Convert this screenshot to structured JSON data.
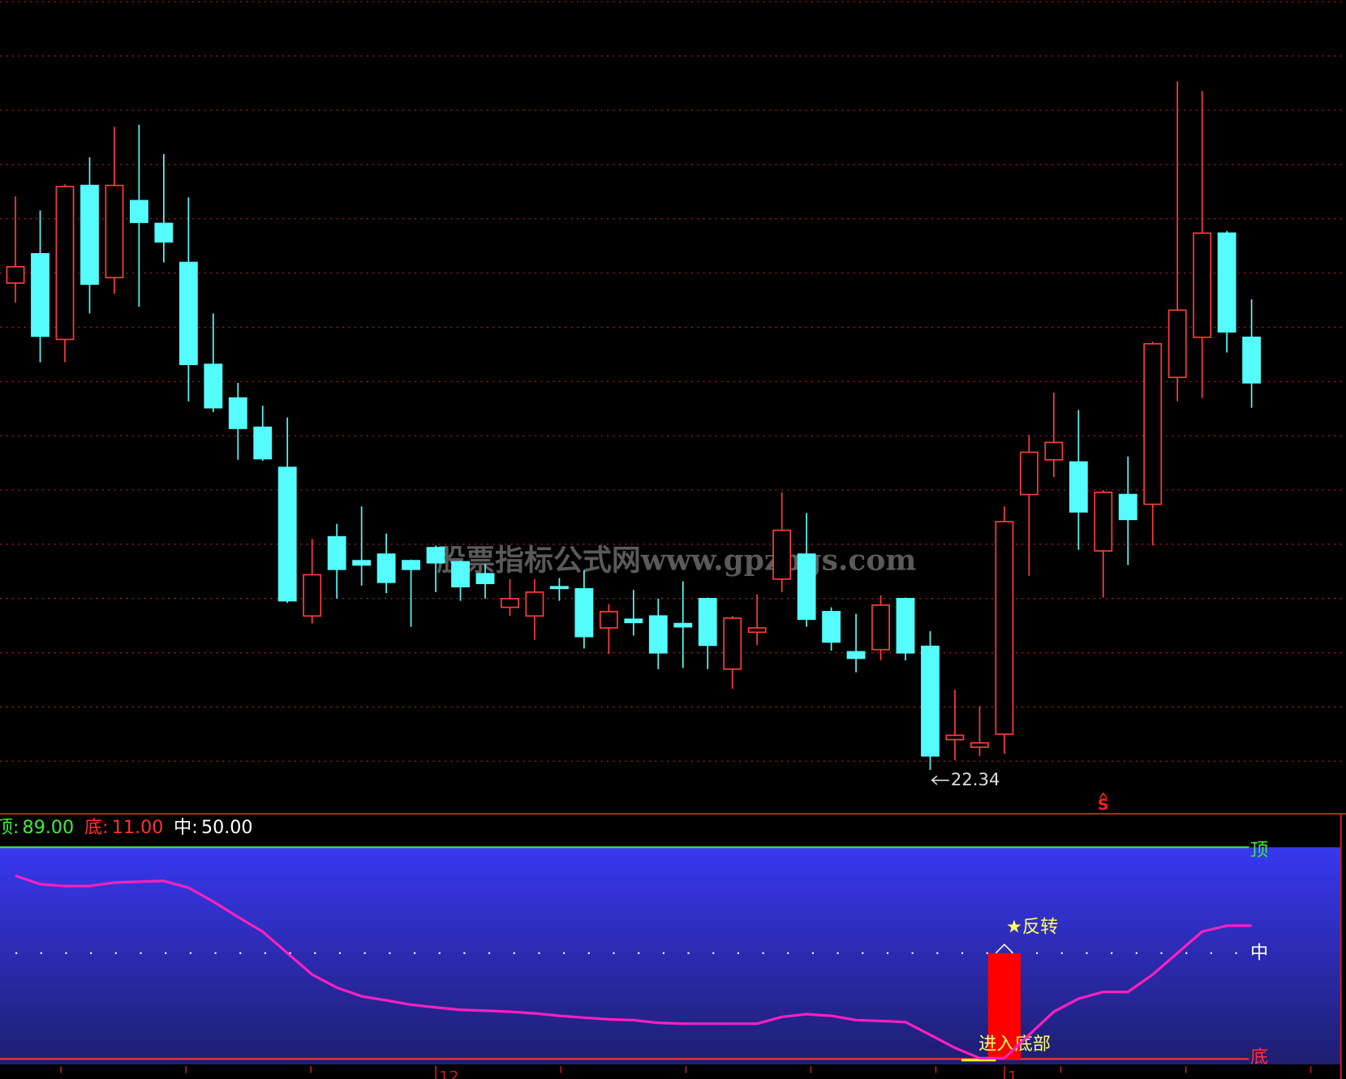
{
  "watermark": "股票指标公式网www.gpzbgs.com",
  "chart_data": [
    {
      "type": "candlestick",
      "ylim": [
        21.96,
        29.44
      ],
      "up_color": "#ff3c3c",
      "down_color": "#54fcfc",
      "grid": true,
      "open": [
        26.83,
        27.1,
        26.31,
        27.73,
        26.88,
        27.59,
        27.38,
        27.02,
        26.08,
        25.77,
        25.5,
        25.13,
        23.76,
        24.49,
        24.27,
        24.33,
        24.27,
        24.39,
        24.26,
        24.15,
        23.84,
        23.76,
        24.03,
        24.01,
        23.65,
        23.73,
        23.76,
        23.69,
        23.92,
        23.27,
        23.61,
        24.1,
        24.33,
        23.8,
        23.43,
        23.45,
        23.92,
        23.48,
        22.62,
        22.55,
        22.67,
        24.88,
        25.2,
        25.18,
        24.36,
        24.88,
        24.79,
        25.96,
        26.33,
        27.29,
        26.33
      ],
      "high": [
        27.63,
        27.5,
        27.74,
        27.99,
        28.27,
        28.29,
        28.02,
        27.62,
        26.55,
        25.91,
        25.7,
        25.59,
        24.47,
        24.61,
        24.77,
        24.52,
        24.28,
        24.41,
        24.27,
        24.24,
        24.1,
        24.1,
        24.11,
        24.18,
        23.87,
        24.0,
        23.92,
        24.08,
        23.93,
        23.76,
        23.96,
        24.9,
        24.71,
        23.84,
        23.78,
        23.95,
        23.93,
        23.62,
        23.08,
        22.93,
        24.77,
        25.43,
        25.82,
        25.66,
        24.92,
        25.23,
        26.29,
        28.69,
        28.6,
        27.31,
        26.68
      ],
      "low": [
        26.65,
        26.1,
        26.1,
        26.55,
        26.73,
        26.61,
        27.02,
        25.74,
        25.64,
        25.2,
        25.19,
        23.88,
        23.69,
        23.92,
        24.04,
        23.97,
        23.66,
        23.98,
        23.9,
        23.92,
        23.76,
        23.54,
        23.9,
        23.46,
        23.41,
        23.58,
        23.27,
        23.28,
        23.27,
        23.09,
        23.49,
        23.98,
        23.66,
        23.44,
        23.24,
        23.35,
        23.35,
        22.34,
        22.43,
        22.47,
        22.49,
        24.13,
        25.04,
        24.37,
        23.93,
        24.23,
        24.41,
        25.74,
        25.77,
        26.19,
        25.68
      ],
      "close": [
        26.98,
        26.34,
        27.72,
        26.82,
        27.73,
        27.39,
        27.21,
        26.08,
        25.68,
        25.49,
        25.21,
        23.9,
        24.14,
        24.19,
        24.23,
        24.07,
        24.19,
        24.25,
        24.03,
        24.06,
        23.92,
        23.98,
        24.02,
        23.57,
        23.8,
        23.7,
        23.42,
        23.66,
        23.49,
        23.74,
        23.65,
        24.55,
        23.73,
        23.52,
        23.37,
        23.86,
        23.42,
        22.47,
        22.66,
        22.59,
        24.63,
        25.27,
        25.36,
        24.72,
        24.9,
        24.65,
        26.27,
        26.58,
        27.29,
        26.38,
        25.91
      ],
      "markers": [
        {
          "text": "S",
          "at": 44,
          "color": "#ff2020"
        }
      ]
    },
    {
      "type": "indicator",
      "ylim": [
        9,
        89
      ],
      "categories": [
        null,
        null,
        null,
        null,
        null,
        null,
        null,
        null,
        null,
        null,
        null,
        null,
        null,
        null,
        null,
        null,
        null,
        "12",
        null,
        null,
        null,
        null,
        null,
        null,
        null,
        null,
        null,
        null,
        null,
        null,
        null,
        null,
        null,
        null,
        null,
        null,
        null,
        null,
        null,
        null,
        "1",
        null,
        null,
        null,
        null,
        null,
        null,
        null,
        null,
        null,
        null
      ],
      "levels": [
        {
          "name": "顶:",
          "tag": "顶",
          "value": 89,
          "value_label": "89.00",
          "color": "#3cf03c",
          "style": "solid"
        },
        {
          "name": "底:",
          "tag": "底",
          "value": 11,
          "value_label": "11.00",
          "color": "#ff3232",
          "style": "solid"
        },
        {
          "name": "中:",
          "tag": "中",
          "value": 50,
          "value_label": "50.00",
          "color": "#ffffff",
          "style": "dotted"
        }
      ],
      "line": {
        "color": "#ff20c0",
        "values": [
          78.5,
          75.4,
          74.7,
          74.7,
          76.0,
          76.3,
          76.6,
          74.1,
          69.0,
          63.3,
          57.9,
          50.0,
          42.1,
          37.3,
          34.1,
          32.6,
          31.0,
          30.0,
          29.1,
          28.8,
          28.4,
          27.8,
          26.9,
          26.2,
          25.6,
          25.3,
          24.3,
          24.0,
          24.0,
          24.0,
          24.0,
          26.5,
          27.5,
          26.9,
          25.3,
          25.0,
          24.6,
          19.9,
          15.1,
          11.3,
          11.3,
          19.9,
          28.4,
          33.2,
          35.7,
          35.7,
          42.1,
          50.0,
          57.9,
          60.1,
          60.1
        ]
      },
      "bars": {
        "color": "#ff0000",
        "values": [
          null,
          null,
          null,
          null,
          null,
          null,
          null,
          null,
          null,
          null,
          null,
          null,
          null,
          null,
          null,
          null,
          null,
          null,
          null,
          null,
          null,
          null,
          null,
          null,
          null,
          null,
          null,
          null,
          null,
          null,
          null,
          null,
          null,
          null,
          null,
          null,
          null,
          null,
          null,
          null,
          50,
          null,
          null,
          null,
          null,
          null,
          null,
          null,
          null,
          null,
          null
        ]
      },
      "reversal_label": "★反转",
      "bottom_label": "进入底部"
    }
  ]
}
